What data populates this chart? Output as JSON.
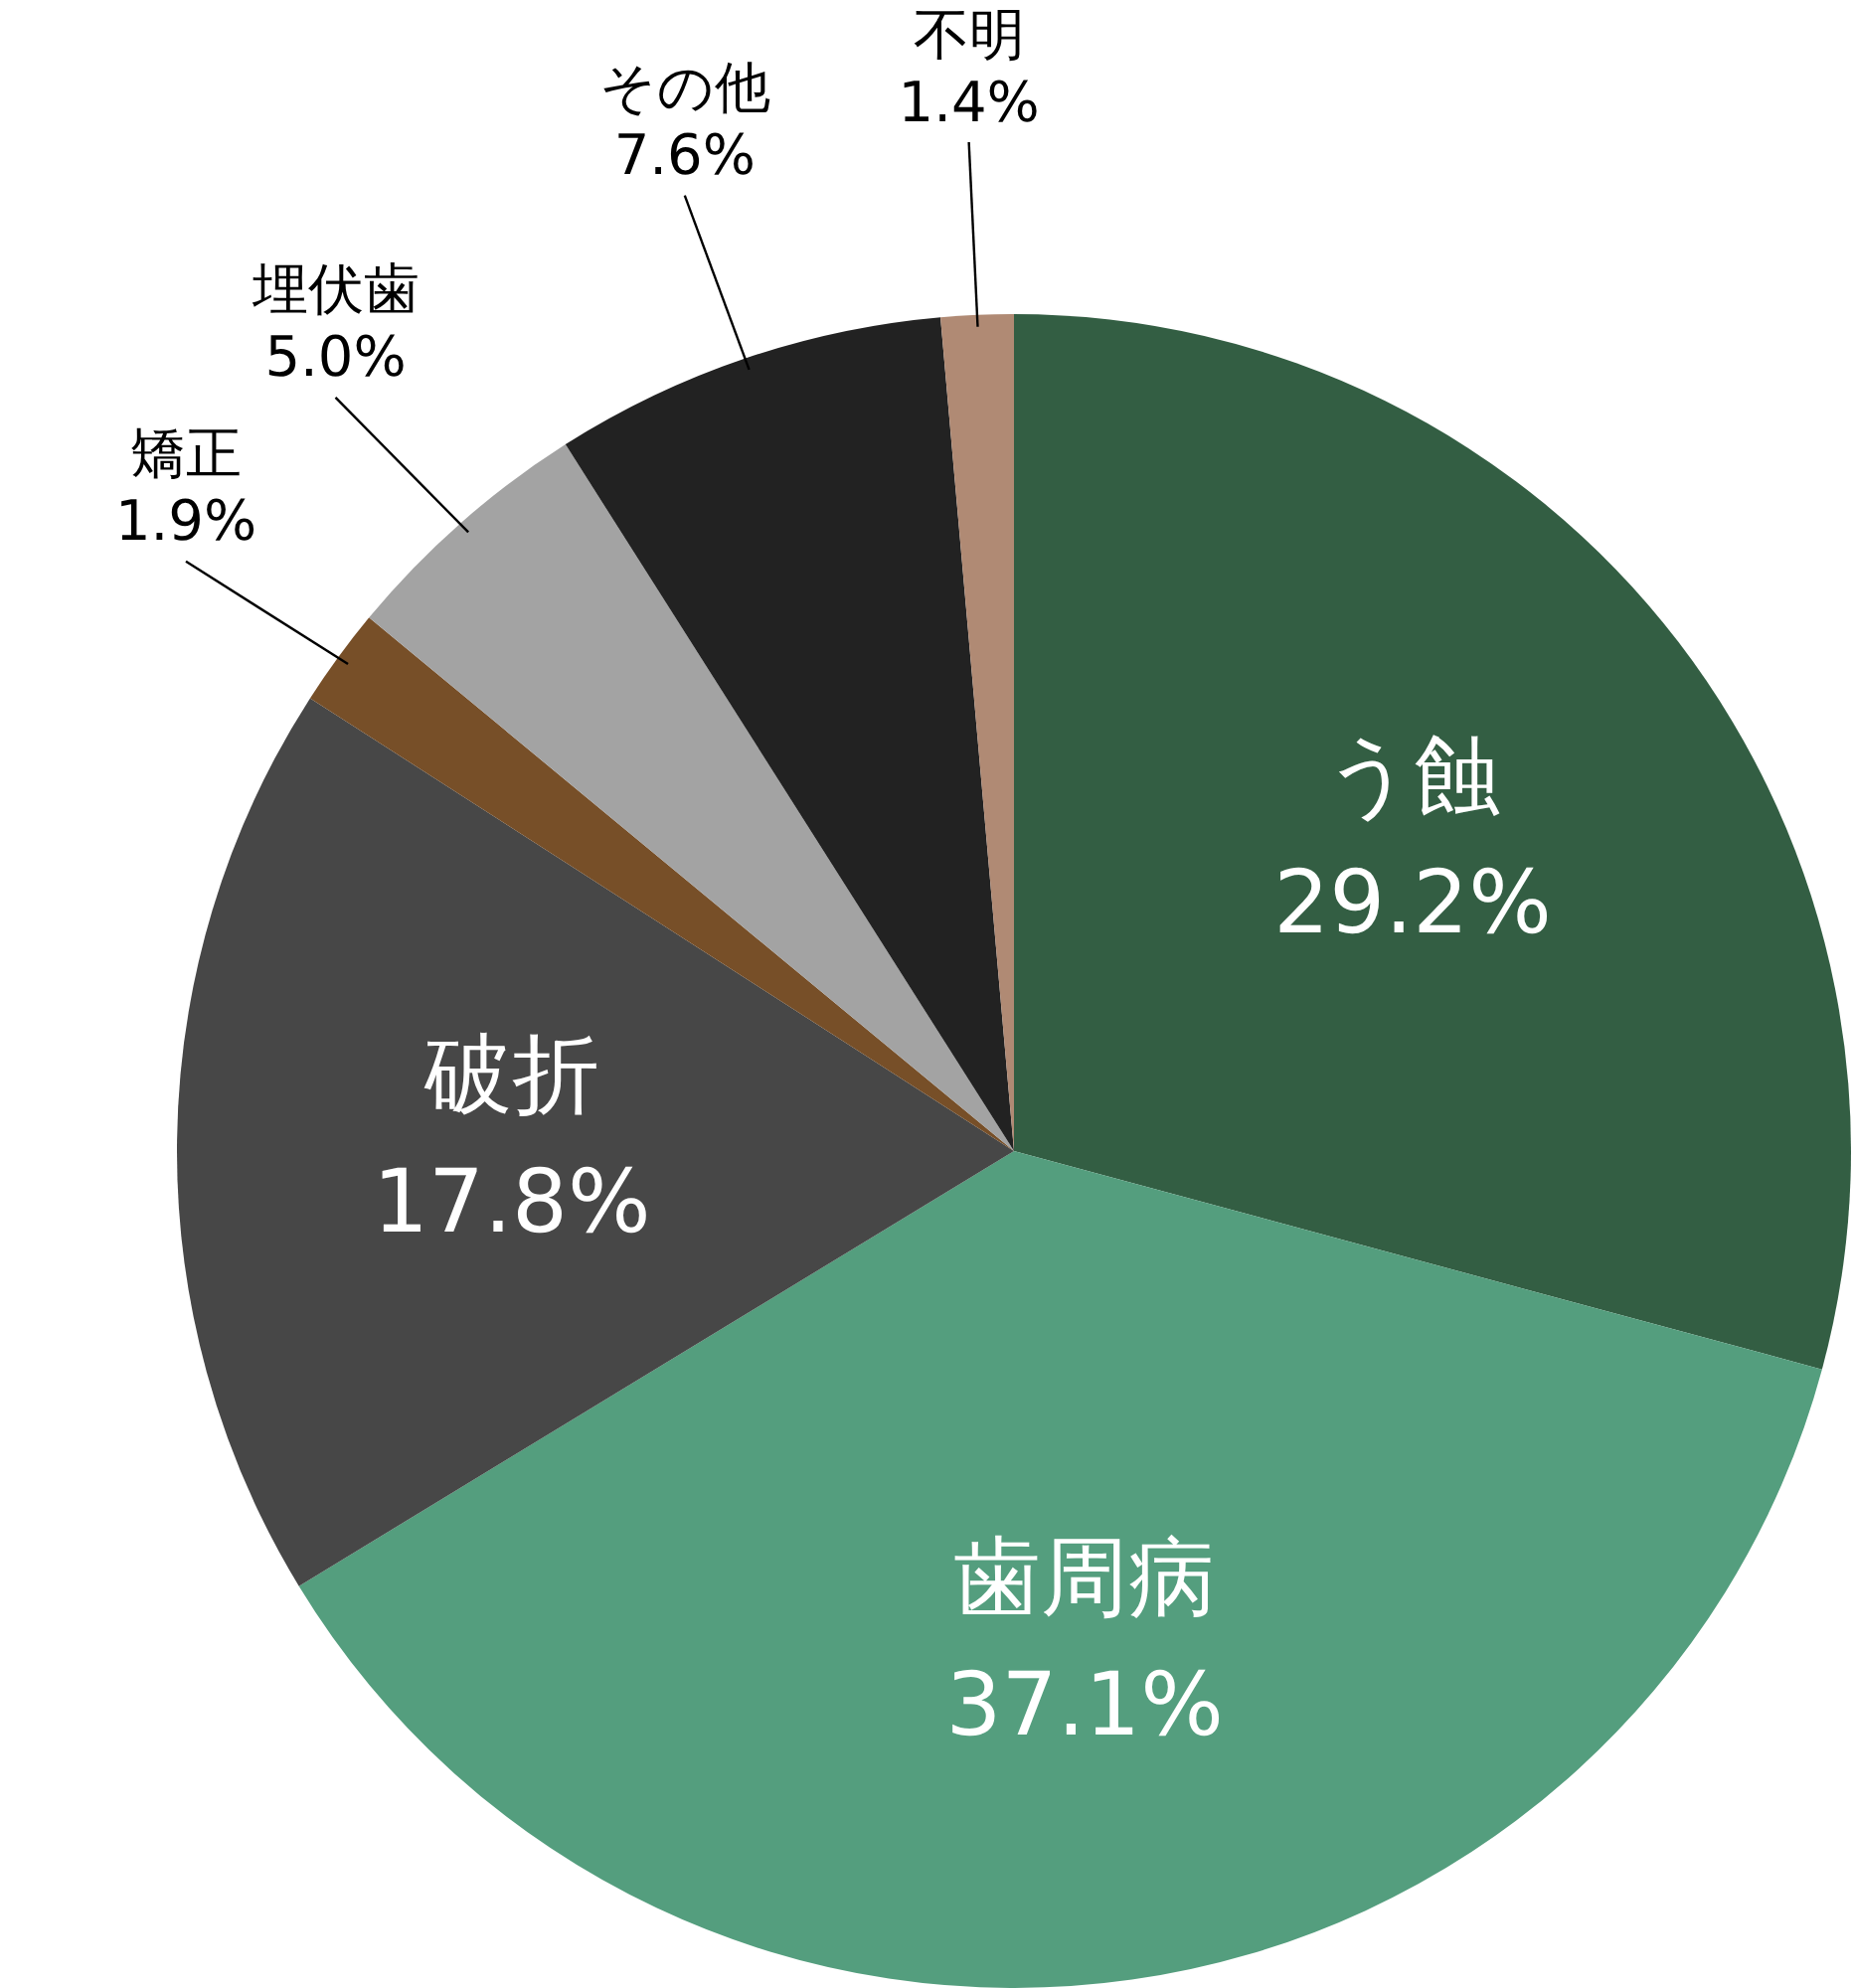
{
  "chart_data": {
    "type": "pie",
    "categories": [
      "う蝕",
      "歯周病",
      "破折",
      "矯正",
      "埋伏歯",
      "その他",
      "不明"
    ],
    "values": [
      29.2,
      37.1,
      17.8,
      1.9,
      5.0,
      7.6,
      1.4
    ],
    "value_labels": [
      "29.2%",
      "37.1%",
      "17.8%",
      "1.9%",
      "5.0%",
      "7.6%",
      "1.4%"
    ],
    "colors": [
      "#335e43",
      "#549e7e",
      "#474747",
      "#774f28",
      "#a3a3a3",
      "#222222",
      "#b08a74"
    ],
    "legend": false
  }
}
